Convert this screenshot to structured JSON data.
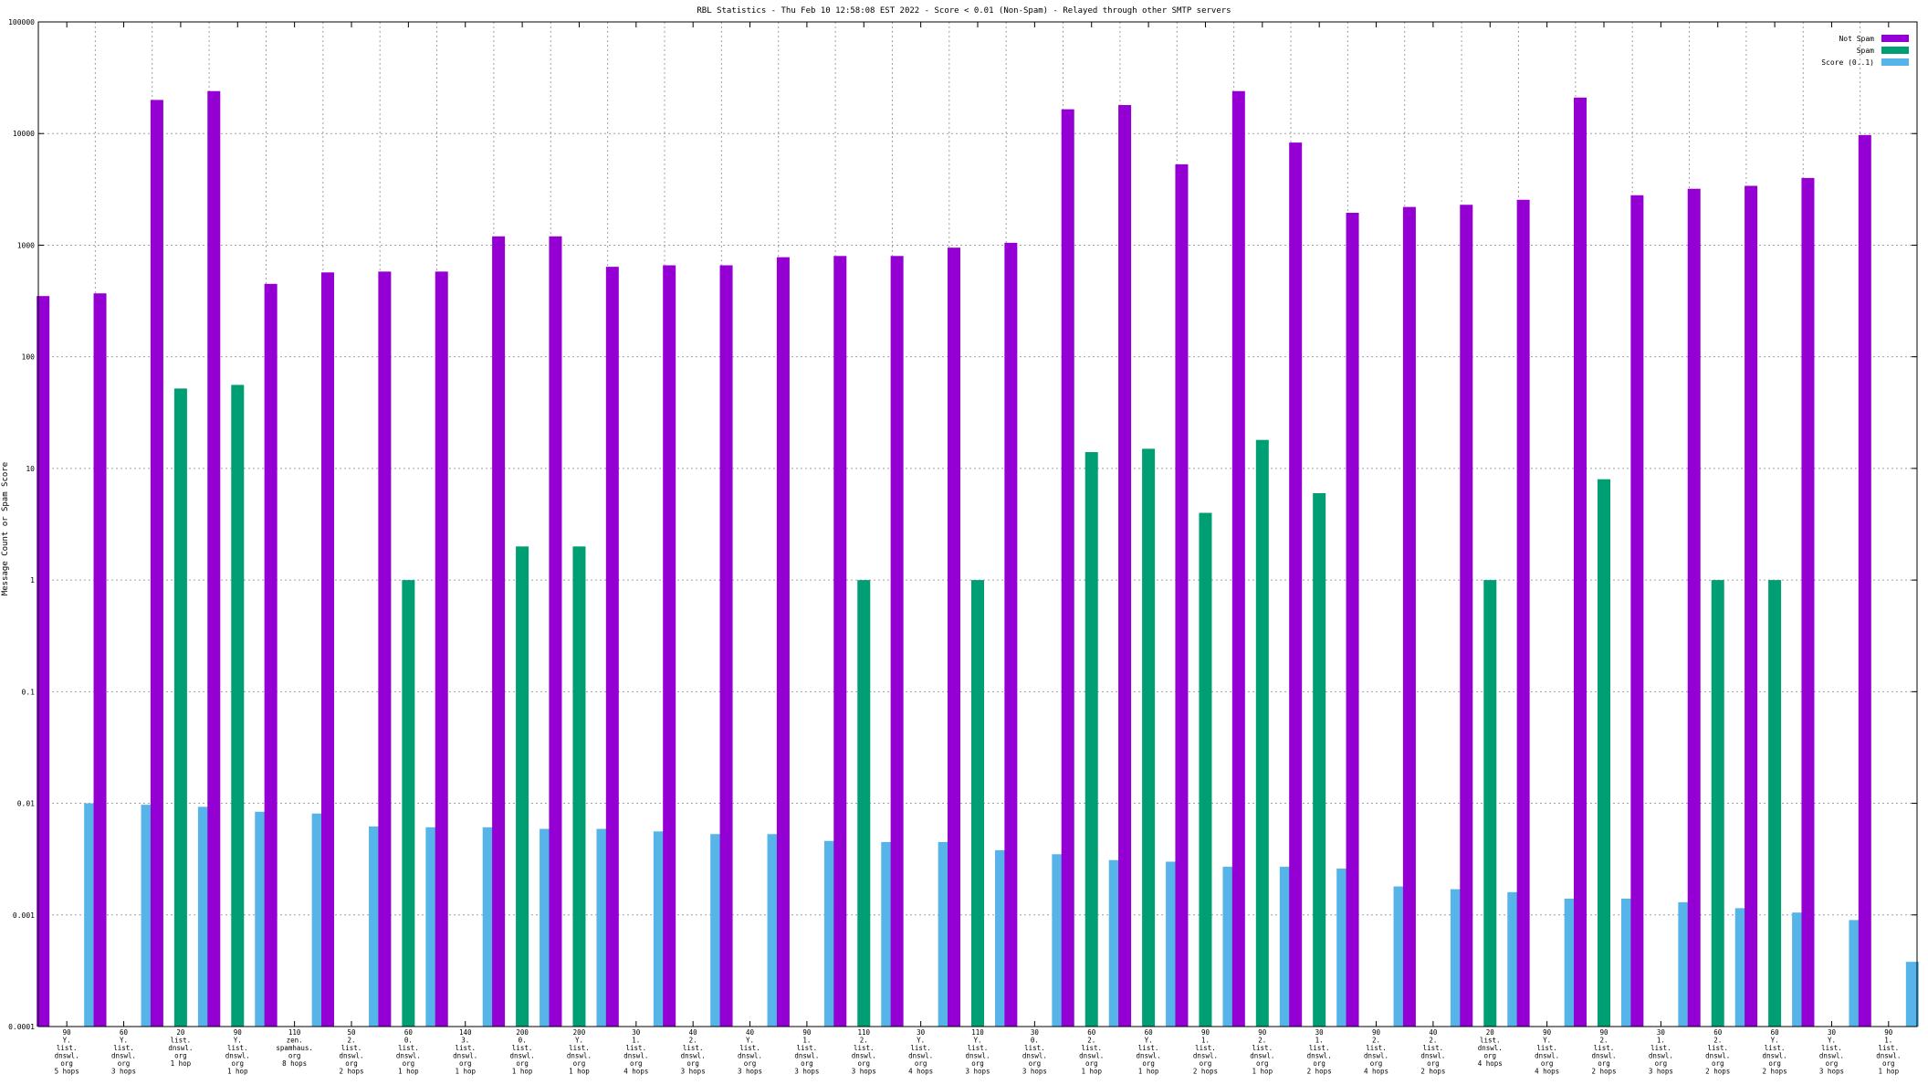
{
  "chart_data": {
    "type": "bar",
    "title": "RBL Statistics - Thu Feb 10 12:58:08 EST 2022 - Score < 0.01 (Non-Spam) - Relayed through other SMTP servers",
    "xlabel": "",
    "ylabel": "Message Count or Spam Score",
    "yscale": "log",
    "ylim": [
      0.0001,
      100000
    ],
    "yticks": [
      "0.0001",
      "0.001",
      "0.01",
      "0.1",
      "1",
      "10",
      "100",
      "1000",
      "10000",
      "100000"
    ],
    "grid": true,
    "legend_position": "top-right",
    "categories": [
      [
        "90",
        "Y.",
        "list.",
        "dnswl.",
        "org",
        "5 hops"
      ],
      [
        "60",
        "Y.",
        "list.",
        "dnswl.",
        "org",
        "3 hops"
      ],
      [
        "20",
        "list.",
        "dnswl.",
        "org",
        "1 hop"
      ],
      [
        "90",
        "Y.",
        "list.",
        "dnswl.",
        "org",
        "1 hop"
      ],
      [
        "110",
        "zen.",
        "spamhaus.",
        "org",
        "8 hops"
      ],
      [
        "50",
        "2.",
        "list.",
        "dnswl.",
        "org",
        "2 hops"
      ],
      [
        "60",
        "0.",
        "list.",
        "dnswl.",
        "org",
        "1 hop"
      ],
      [
        "140",
        "3.",
        "list.",
        "dnswl.",
        "org",
        "1 hop"
      ],
      [
        "200",
        "0.",
        "list.",
        "dnswl.",
        "org",
        "1 hop"
      ],
      [
        "200",
        "Y.",
        "list.",
        "dnswl.",
        "org",
        "1 hop"
      ],
      [
        "30",
        "1.",
        "list.",
        "dnswl.",
        "org",
        "4 hops"
      ],
      [
        "40",
        "2.",
        "list.",
        "dnswl.",
        "org",
        "3 hops"
      ],
      [
        "40",
        "Y.",
        "list.",
        "dnswl.",
        "org",
        "3 hops"
      ],
      [
        "90",
        "1.",
        "list.",
        "dnswl.",
        "org",
        "3 hops"
      ],
      [
        "110",
        "2.",
        "list.",
        "dnswl.",
        "org",
        "3 hops"
      ],
      [
        "30",
        "Y.",
        "list.",
        "dnswl.",
        "org",
        "4 hops"
      ],
      [
        "110",
        "Y.",
        "list.",
        "dnswl.",
        "org",
        "3 hops"
      ],
      [
        "30",
        "0.",
        "list.",
        "dnswl.",
        "org",
        "3 hops"
      ],
      [
        "60",
        "2.",
        "list.",
        "dnswl.",
        "org",
        "1 hop"
      ],
      [
        "60",
        "Y.",
        "list.",
        "dnswl.",
        "org",
        "1 hop"
      ],
      [
        "90",
        "1.",
        "list.",
        "dnswl.",
        "org",
        "2 hops"
      ],
      [
        "90",
        "2.",
        "list.",
        "dnswl.",
        "org",
        "1 hop"
      ],
      [
        "30",
        "1.",
        "list.",
        "dnswl.",
        "org",
        "2 hops"
      ],
      [
        "90",
        "2.",
        "list.",
        "dnswl.",
        "org",
        "4 hops"
      ],
      [
        "40",
        "2.",
        "list.",
        "dnswl.",
        "org",
        "2 hops"
      ],
      [
        "20",
        "list.",
        "dnswl.",
        "org",
        "4 hops"
      ],
      [
        "90",
        "Y.",
        "list.",
        "dnswl.",
        "org",
        "4 hops"
      ],
      [
        "90",
        "2.",
        "list.",
        "dnswl.",
        "org",
        "2 hops"
      ],
      [
        "30",
        "1.",
        "list.",
        "dnswl.",
        "org",
        "3 hops"
      ],
      [
        "60",
        "2.",
        "list.",
        "dnswl.",
        "org",
        "2 hops"
      ],
      [
        "60",
        "Y.",
        "list.",
        "dnswl.",
        "org",
        "2 hops"
      ],
      [
        "30",
        "Y.",
        "list.",
        "dnswl.",
        "org",
        "3 hops"
      ],
      [
        "90",
        "1.",
        "list.",
        "dnswl.",
        "org",
        "1 hop"
      ]
    ],
    "series": [
      {
        "name": "Not Spam",
        "color": "#9400d3",
        "values": [
          350,
          370,
          20000,
          24000,
          450,
          570,
          580,
          580,
          1200,
          1200,
          640,
          660,
          660,
          780,
          800,
          800,
          950,
          1050,
          16500,
          18000,
          5300,
          24000,
          8300,
          1950,
          2200,
          2300,
          2550,
          21000,
          2800,
          3200,
          3400,
          4000,
          9700
        ]
      },
      {
        "name": "Spam",
        "color": "#009e73",
        "values": [
          null,
          null,
          52,
          56,
          null,
          null,
          1,
          null,
          2,
          2,
          null,
          null,
          null,
          null,
          1,
          null,
          1,
          null,
          14,
          15,
          4,
          18,
          6,
          null,
          null,
          1,
          null,
          8,
          null,
          1,
          1,
          null,
          null
        ]
      },
      {
        "name": "Score (0..1)",
        "color": "#56b4e9",
        "values": [
          0.01,
          0.0097,
          0.0093,
          0.0084,
          0.0081,
          0.0062,
          0.0061,
          0.0061,
          0.0059,
          0.0059,
          0.0056,
          0.0053,
          0.0053,
          0.0046,
          0.0045,
          0.0045,
          0.0038,
          0.0035,
          0.0031,
          0.003,
          0.0027,
          0.0027,
          0.0026,
          0.0018,
          0.0017,
          0.0016,
          0.0014,
          0.0014,
          0.0013,
          0.00115,
          0.00105,
          0.0009,
          0.00038
        ]
      }
    ]
  }
}
